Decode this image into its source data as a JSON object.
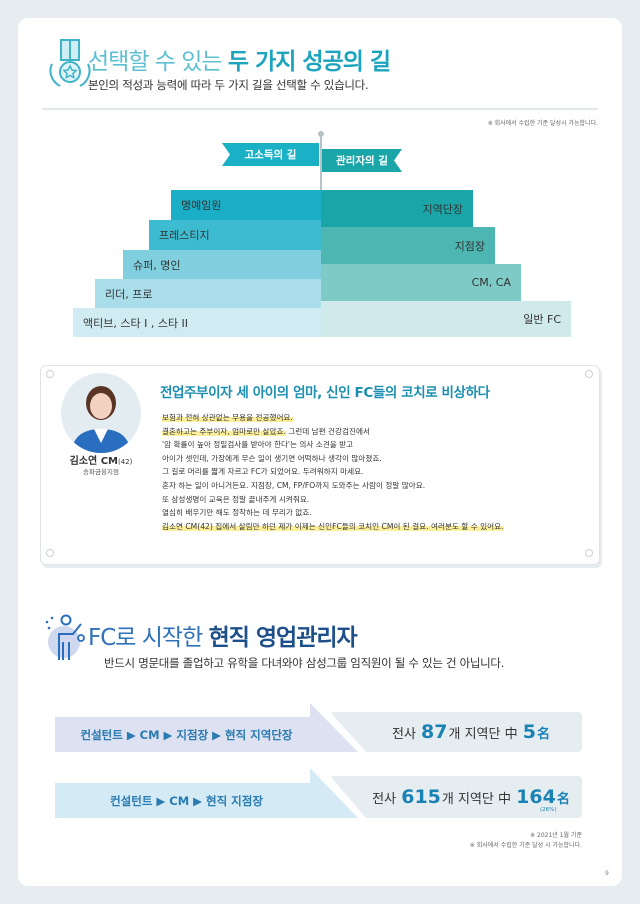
{
  "section1": {
    "title_light": "선택할 수 있는",
    "title_bold": "두 가지 성공의 길",
    "subtitle": "본인의 적성과 능력에 따라 두 가지 길을 선택할 수 있습니다.",
    "note": "※ 회사에서 수립한 기준 달성시 가능합니다.",
    "icon": "medal-icon"
  },
  "paths": {
    "left_flag": "고소득의 길",
    "right_flag": "관리자의 길",
    "left": [
      "명예임원",
      "프레스티지",
      "슈퍼, 명인",
      "리더, 프로",
      "액티브, 스타 I , 스타 II"
    ],
    "right": [
      "지역단장",
      "지점장",
      "CM, CA",
      "일반 FC"
    ],
    "colors": {
      "left": [
        "#1aafc6",
        "#3dbbd1",
        "#7fcfdf",
        "#a8dde9",
        "#d0ecf2"
      ],
      "right": [
        "#1aa6a8",
        "#4db6b3",
        "#7dcac6",
        "#d0e9ea"
      ]
    }
  },
  "story": {
    "name": "김소연 CM",
    "age": "(42)",
    "branch": "송파금융지점",
    "title": "전업주부이자 세 아이의 엄마, 신인 FC들의 코치로 비상하다",
    "lines": [
      {
        "hl": "보험과 전혀 상관없는 무용을 전공했어요.",
        "text": ""
      },
      {
        "hl": "결혼하고는 주부이자, 엄마로만 살았죠.",
        "text": " 그런데 남편 건강검진에서"
      },
      {
        "hl": "",
        "text": "'암 확률이 높아 정밀검사를 받아야 한다'는 의사 소견을 받고"
      },
      {
        "hl": "",
        "text": "아이가 셋인데, 가장에게 무슨 일이 생기면 어떡하나 생각이 많아졌죠."
      },
      {
        "hl": "",
        "text": "그 길로 머리를 짧게 자르고 FC가 되었어요. 두려워하지 마세요."
      },
      {
        "hl": "",
        "text": "혼자 하는 일이 아니거든요. 지점장, CM, FP/FO까지 도와주는 사람이 정말 많아요."
      },
      {
        "hl": "",
        "text": "또 삼성생명이 교육은 정말 끝내주게 시켜줘요."
      },
      {
        "hl": "",
        "text": "열심히 배우기만 해도 정착하는 데 무리가 없죠."
      },
      {
        "hl": "김소연 CM(42) 집에서 살림만 하던 제가 이제는 신인FC들의 코치인 CM이 된 걸요. 여러분도 할 수 있어요.",
        "text": ""
      }
    ]
  },
  "section2": {
    "title_light": "FC로 시작한",
    "title_bold": "현직 영업관리자",
    "subtitle": "반드시 명문대를 졸업하고 유학을 다녀와야 삼성그룹 임직원이 될 수 있는 건 아닙니다.",
    "icon": "person-pointing-icon",
    "rows": [
      {
        "path": "컨설턴트 ▶ CM ▶ 지점장 ▶ 현직 지역단장",
        "pre": "전사",
        "total": "87",
        "unit": "개 지역단 中",
        "count": "5",
        "suffix": "名",
        "pct": ""
      },
      {
        "path": "컨설턴트 ▶ CM ▶ 현직 지점장",
        "pre": "전사",
        "total": "615",
        "unit": "개 지역단 中",
        "count": "164",
        "suffix": "名",
        "pct": "(26%)"
      }
    ],
    "notes": [
      "※ 2021년 1월 기준",
      "※ 회사에서 수립한 기준 달성 시 가능합니다."
    ]
  },
  "page_number": "9"
}
